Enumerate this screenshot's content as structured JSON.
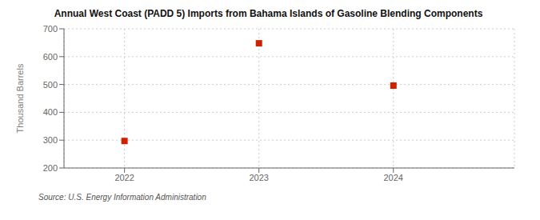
{
  "chart_data": {
    "type": "scatter",
    "title": "Annual West Coast (PADD 5) Imports from Bahama Islands of Gasoline Blending Components",
    "ylabel": "Thousand Barrels",
    "annotations": [
      "Source: U.S. Energy Information Administration"
    ],
    "x": [
      2022,
      2023,
      2024
    ],
    "values": [
      297,
      648,
      496
    ],
    "color": "#cc2200",
    "marker": "square",
    "xlim": [
      2021.55,
      2024.9
    ],
    "ylim": [
      200,
      700
    ],
    "xticks": [
      2022,
      2023,
      2024
    ],
    "yticks": [
      200,
      300,
      400,
      500,
      600,
      700
    ],
    "grid": true
  }
}
